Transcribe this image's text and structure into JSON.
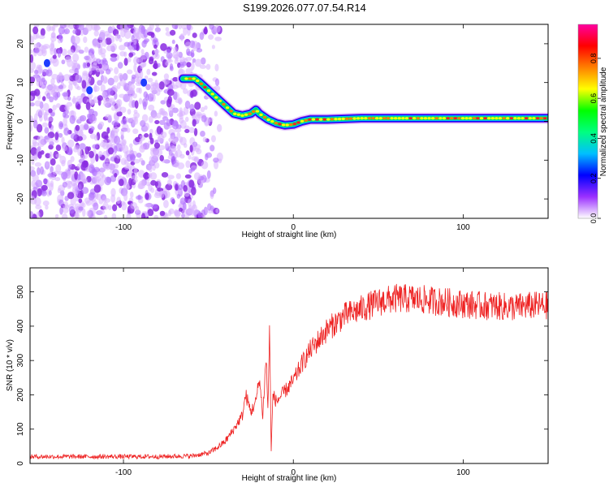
{
  "title": "S199.2026.077.07.54.R14",
  "chart_data": [
    {
      "type": "heatmap",
      "xlabel": "Height of straight line (km)",
      "ylabel": "Frequency (Hz)",
      "xlim": [
        -155,
        150
      ],
      "ylim": [
        -25,
        25
      ],
      "xticks": [
        -100,
        0,
        100
      ],
      "yticks": [
        -20,
        -10,
        0,
        10,
        20
      ],
      "grid": false,
      "colorbar": {
        "label": "Normalized spectral amplitude",
        "range": [
          0,
          0.97
        ],
        "ticks": [
          "0.0",
          "0.2",
          "0.4",
          "0.6",
          "0.8"
        ],
        "colors": [
          "#ffffff",
          "#9b30ff",
          "#0000ff",
          "#00bfff",
          "#00ff80",
          "#00ff00",
          "#ffff00",
          "#ff8000",
          "#ff0000",
          "#ff00a0"
        ]
      },
      "ridge": {
        "x": [
          -65,
          -58,
          -55,
          -50,
          -45,
          -40,
          -35,
          -30,
          -25,
          -22,
          -20,
          -15,
          -10,
          -5,
          0,
          5,
          10,
          20,
          40,
          60,
          80,
          100,
          120,
          150
        ],
        "y": [
          11,
          11,
          10,
          8,
          6,
          4,
          2,
          1.5,
          2,
          3,
          2,
          0.5,
          -0.5,
          -1,
          -0.8,
          0,
          0.5,
          0.5,
          0.8,
          0.8,
          0.8,
          0.8,
          0.8,
          0.8
        ]
      },
      "noise_region_x": [
        -155,
        -55
      ]
    },
    {
      "type": "line",
      "xlabel": "Height of straight line (km)",
      "ylabel": "SNR (10 * v/v)",
      "xlim": [
        -155,
        150
      ],
      "ylim": [
        0,
        570
      ],
      "xticks": [
        -100,
        0,
        100
      ],
      "yticks": [
        0,
        100,
        200,
        300,
        400,
        500
      ],
      "grid": false,
      "color": "#ee2222",
      "series": [
        {
          "x": [
            -155,
            -140,
            -120,
            -100,
            -80,
            -60,
            -50,
            -45,
            -40,
            -35,
            -30,
            -28,
            -25,
            -22,
            -20,
            -18,
            -16,
            -15,
            -14,
            -13,
            -12,
            -10,
            -5,
            0,
            5,
            10,
            15,
            20,
            25,
            30,
            35,
            40,
            50,
            60,
            70,
            80,
            90,
            100,
            110,
            120,
            130,
            140,
            150
          ],
          "y": [
            20,
            20,
            20,
            20,
            20,
            22,
            30,
            45,
            65,
            100,
            140,
            200,
            150,
            180,
            250,
            140,
            310,
            160,
            380,
            40,
            200,
            180,
            210,
            240,
            290,
            330,
            360,
            390,
            410,
            430,
            440,
            450,
            470,
            480,
            480,
            475,
            470,
            465,
            460,
            458,
            455,
            460,
            460
          ]
        }
      ]
    }
  ]
}
